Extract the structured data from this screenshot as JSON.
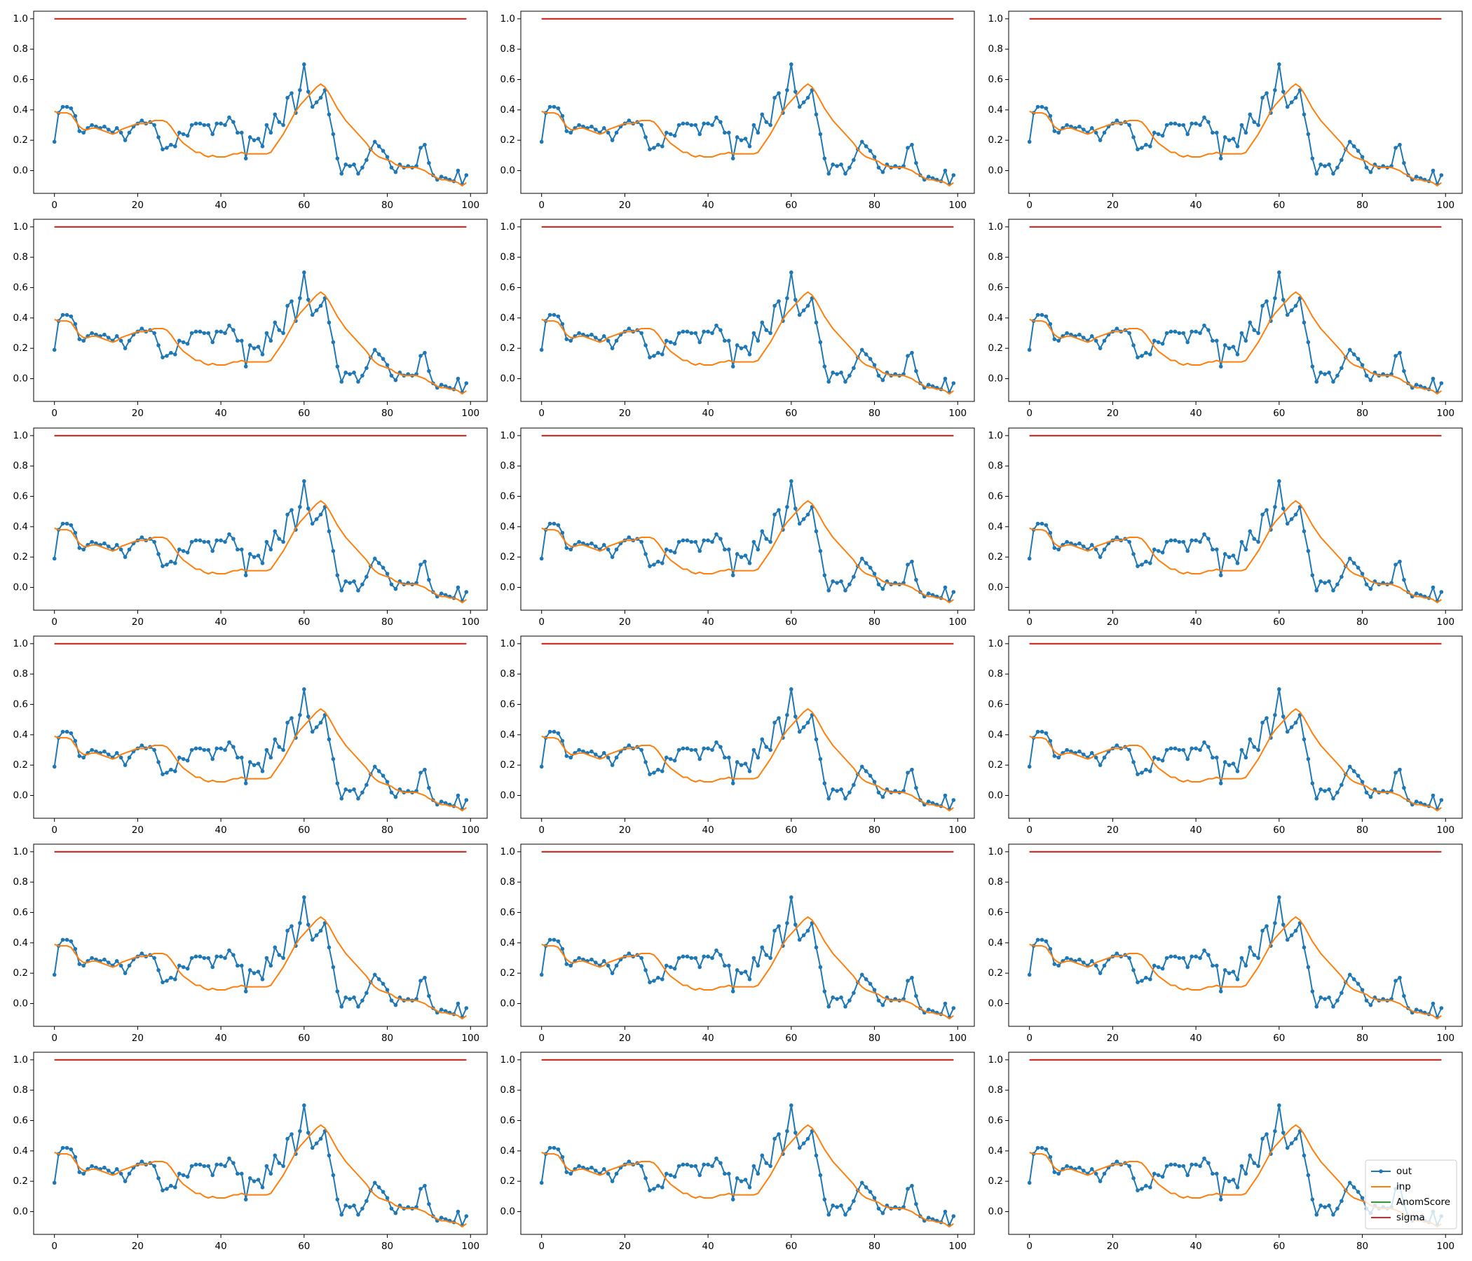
{
  "chart_data": {
    "type": "line",
    "x": [
      0,
      1,
      2,
      3,
      4,
      5,
      6,
      7,
      8,
      9,
      10,
      11,
      12,
      13,
      14,
      15,
      16,
      17,
      18,
      19,
      20,
      21,
      22,
      23,
      24,
      25,
      26,
      27,
      28,
      29,
      30,
      31,
      32,
      33,
      34,
      35,
      36,
      37,
      38,
      39,
      40,
      41,
      42,
      43,
      44,
      45,
      46,
      47,
      48,
      49,
      50,
      51,
      52,
      53,
      54,
      55,
      56,
      57,
      58,
      59,
      60,
      61,
      62,
      63,
      64,
      65,
      66,
      67,
      68,
      69,
      70,
      71,
      72,
      73,
      74,
      75,
      76,
      77,
      78,
      79,
      80,
      81,
      82,
      83,
      84,
      85,
      86,
      87,
      88,
      89,
      90,
      91,
      92,
      93,
      94,
      95,
      96,
      97,
      98,
      99
    ],
    "series": [
      {
        "name": "out",
        "color": "#1f77b4",
        "marker": true,
        "values": [
          0.19,
          0.38,
          0.42,
          0.42,
          0.41,
          0.36,
          0.26,
          0.25,
          0.28,
          0.3,
          0.29,
          0.28,
          0.29,
          0.27,
          0.25,
          0.28,
          0.25,
          0.2,
          0.25,
          0.29,
          0.31,
          0.33,
          0.31,
          0.32,
          0.3,
          0.22,
          0.14,
          0.15,
          0.17,
          0.16,
          0.25,
          0.24,
          0.23,
          0.3,
          0.31,
          0.31,
          0.3,
          0.3,
          0.24,
          0.31,
          0.31,
          0.3,
          0.35,
          0.32,
          0.25,
          0.25,
          0.08,
          0.22,
          0.2,
          0.21,
          0.16,
          0.3,
          0.25,
          0.37,
          0.32,
          0.3,
          0.48,
          0.51,
          0.38,
          0.53,
          0.7,
          0.52,
          0.42,
          0.45,
          0.48,
          0.53,
          0.37,
          0.24,
          0.08,
          -0.02,
          0.04,
          0.03,
          0.04,
          -0.02,
          0.02,
          0.07,
          0.14,
          0.19,
          0.16,
          0.13,
          0.09,
          0.02,
          -0.01,
          0.04,
          0.02,
          0.03,
          0.02,
          0.03,
          0.15,
          0.17,
          0.05,
          -0.03,
          -0.06,
          -0.04,
          -0.05,
          -0.06,
          -0.07,
          0.0,
          -0.09,
          -0.03
        ]
      },
      {
        "name": "inp",
        "color": "#ff7f0e",
        "values": [
          0.39,
          0.38,
          0.38,
          0.38,
          0.37,
          0.33,
          0.29,
          0.27,
          0.27,
          0.28,
          0.28,
          0.27,
          0.26,
          0.25,
          0.24,
          0.25,
          0.27,
          0.28,
          0.29,
          0.3,
          0.31,
          0.31,
          0.31,
          0.32,
          0.33,
          0.33,
          0.33,
          0.32,
          0.29,
          0.25,
          0.21,
          0.18,
          0.16,
          0.14,
          0.12,
          0.12,
          0.1,
          0.09,
          0.1,
          0.09,
          0.09,
          0.09,
          0.1,
          0.11,
          0.11,
          0.12,
          0.11,
          0.11,
          0.11,
          0.11,
          0.11,
          0.11,
          0.12,
          0.16,
          0.2,
          0.24,
          0.29,
          0.34,
          0.39,
          0.43,
          0.46,
          0.49,
          0.52,
          0.55,
          0.57,
          0.55,
          0.51,
          0.46,
          0.41,
          0.37,
          0.33,
          0.3,
          0.27,
          0.24,
          0.21,
          0.18,
          0.14,
          0.11,
          0.09,
          0.08,
          0.07,
          0.06,
          0.04,
          0.03,
          0.02,
          0.02,
          0.02,
          0.02,
          0.01,
          0.0,
          -0.02,
          -0.03,
          -0.05,
          -0.06,
          -0.06,
          -0.07,
          -0.07,
          -0.08,
          -0.1,
          -0.08
        ]
      },
      {
        "name": "AnomScore",
        "color": "#2ca02c",
        "values": [
          1,
          1,
          1,
          1,
          1,
          1,
          1,
          1,
          1,
          1,
          1,
          1,
          1,
          1,
          1,
          1,
          1,
          1,
          1,
          1,
          1,
          1,
          1,
          1,
          1,
          1,
          1,
          1,
          1,
          1,
          1,
          1,
          1,
          1,
          1,
          1,
          1,
          1,
          1,
          1,
          1,
          1,
          1,
          1,
          1,
          1,
          1,
          1,
          1,
          1,
          1,
          1,
          1,
          1,
          1,
          1,
          1,
          1,
          1,
          1,
          1,
          1,
          1,
          1,
          1,
          1,
          1,
          1,
          1,
          1,
          1,
          1,
          1,
          1,
          1,
          1,
          1,
          1,
          1,
          1,
          1,
          1,
          1,
          1,
          1,
          1,
          1,
          1,
          1,
          1,
          1,
          1,
          1,
          1,
          1,
          1,
          1,
          1,
          1,
          1
        ]
      },
      {
        "name": "sigma",
        "color": "#d62728",
        "values": [
          1,
          1,
          1,
          1,
          1,
          1,
          1,
          1,
          1,
          1,
          1,
          1,
          1,
          1,
          1,
          1,
          1,
          1,
          1,
          1,
          1,
          1,
          1,
          1,
          1,
          1,
          1,
          1,
          1,
          1,
          1,
          1,
          1,
          1,
          1,
          1,
          1,
          1,
          1,
          1,
          1,
          1,
          1,
          1,
          1,
          1,
          1,
          1,
          1,
          1,
          1,
          1,
          1,
          1,
          1,
          1,
          1,
          1,
          1,
          1,
          1,
          1,
          1,
          1,
          1,
          1,
          1,
          1,
          1,
          1,
          1,
          1,
          1,
          1,
          1,
          1,
          1,
          1,
          1,
          1,
          1,
          1,
          1,
          1,
          1,
          1,
          1,
          1,
          1,
          1,
          1,
          1,
          1,
          1,
          1,
          1,
          1,
          1,
          1,
          1
        ]
      }
    ],
    "xlim": [
      -5,
      104
    ],
    "xticks": [
      0,
      20,
      40,
      60,
      80,
      100
    ],
    "ylim": [
      -0.15,
      1.05
    ],
    "yticks": [
      {
        "value": 0,
        "label": "0.0"
      },
      0.2,
      0.4,
      0.6,
      0.8,
      {
        "value": 1,
        "label": "1.0"
      }
    ],
    "legend": "lower right"
  }
}
